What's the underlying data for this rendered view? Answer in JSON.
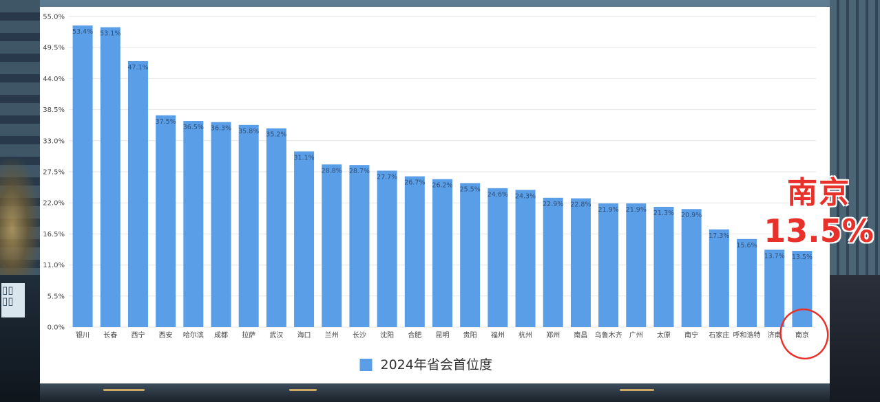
{
  "chart_data": {
    "type": "bar",
    "categories": [
      "银川",
      "长春",
      "西宁",
      "西安",
      "哈尔滨",
      "成都",
      "拉萨",
      "武汉",
      "海口",
      "兰州",
      "长沙",
      "沈阳",
      "合肥",
      "昆明",
      "贵阳",
      "福州",
      "杭州",
      "郑州",
      "南昌",
      "乌鲁木齐",
      "广州",
      "太原",
      "南宁",
      "石家庄",
      "呼和浩特",
      "济南",
      "南京"
    ],
    "series": [
      {
        "name": "2024年省会首位度",
        "values": [
          53.4,
          53.1,
          47.1,
          37.5,
          36.5,
          36.3,
          35.8,
          35.2,
          31.1,
          28.8,
          28.7,
          27.7,
          26.7,
          26.2,
          25.5,
          24.6,
          24.3,
          22.9,
          22.8,
          21.9,
          21.9,
          21.3,
          20.9,
          17.3,
          15.6,
          13.7,
          13.5
        ],
        "value_labels": [
          "53.4%",
          "53.1%",
          "47.1%",
          "37.5%",
          "36.5%",
          "36.3%",
          "35.8%",
          "35.2%",
          "31.1%",
          "28.8%",
          "28.7%",
          "27.7%",
          "26.7%",
          "26.2%",
          "25.5%",
          "24.6%",
          "24.3%",
          "22.9%",
          "22.8%",
          "21.9%",
          "21.9%",
          "21.3%",
          "20.9%",
          "17.3%",
          "15.6%",
          "13.7%",
          "13.5%"
        ],
        "color": "#5b9ee8"
      }
    ],
    "y_ticks": [
      0,
      5.5,
      11,
      16.5,
      22,
      27.5,
      33,
      38.5,
      44,
      49.5,
      55
    ],
    "y_tick_labels": [
      "0.0%",
      "5.5%",
      "11.0%",
      "16.5%",
      "22.0%",
      "27.5%",
      "33.0%",
      "38.5%",
      "44.0%",
      "49.5%",
      "55.0%"
    ],
    "ylim": [
      0,
      55
    ],
    "grid": true,
    "legend": "bottom-center"
  },
  "annotation": {
    "name": "南京",
    "value": "13.5%",
    "color": "#e8312a",
    "circled_category": "南京"
  },
  "colors": {
    "bar": "#5b9ee8",
    "grid": "#e6e6e6",
    "axis_text": "#444444",
    "label_text": "#2f4f75"
  },
  "watermark": "Ⅰ0Ⅰ0Ⅰ"
}
